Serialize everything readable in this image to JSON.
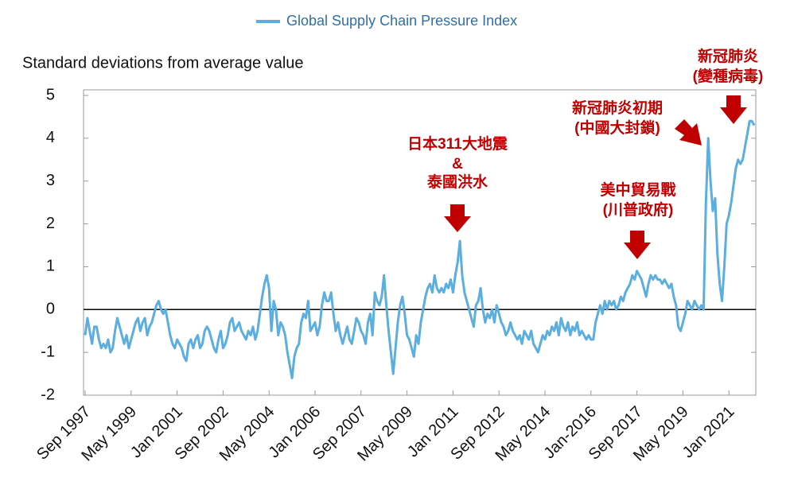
{
  "chart_data": {
    "type": "line",
    "legend": "Global Supply Chain Pressure Index",
    "y_label": "Standard deviations from average value",
    "annotations": [
      [
        "日本311大地震",
        "&",
        "泰國洪水"
      ],
      [
        "美中貿易戰",
        "(川普政府)"
      ],
      [
        "新冠肺炎初期",
        "(中國大封鎖)"
      ],
      [
        "新冠肺炎",
        "(變種病毒)"
      ]
    ],
    "ylim": [
      -2,
      5
    ],
    "yticks": [
      -2,
      -1,
      0,
      1,
      2,
      3,
      4,
      5
    ],
    "color": "#5aaee0",
    "categories": [
      "Sep 1997",
      null,
      null,
      null,
      null,
      null,
      null,
      null,
      null,
      null,
      null,
      null,
      null,
      null,
      null,
      null,
      null,
      null,
      null,
      null,
      "May 1999",
      null,
      null,
      null,
      null,
      null,
      null,
      null,
      null,
      null,
      null,
      null,
      null,
      null,
      null,
      null,
      null,
      null,
      null,
      null,
      "Jan 2001",
      null,
      null,
      null,
      null,
      null,
      null,
      null,
      null,
      null,
      null,
      null,
      null,
      null,
      null,
      null,
      null,
      null,
      null,
      null,
      "Sep 2002",
      null,
      null,
      null,
      null,
      null,
      null,
      null,
      null,
      null,
      null,
      null,
      null,
      null,
      null,
      null,
      null,
      null,
      null,
      null,
      "May 2004",
      null,
      null,
      null,
      null,
      null,
      null,
      null,
      null,
      null,
      null,
      null,
      null,
      null,
      null,
      null,
      null,
      null,
      null,
      null,
      "Jan 2006",
      null,
      null,
      null,
      null,
      null,
      null,
      null,
      null,
      null,
      null,
      null,
      null,
      null,
      null,
      null,
      null,
      null,
      null,
      null,
      "Sep 2007",
      null,
      null,
      null,
      null,
      null,
      null,
      null,
      null,
      null,
      null,
      null,
      null,
      null,
      null,
      null,
      null,
      null,
      null,
      null,
      "May 2009",
      null,
      null,
      null,
      null,
      null,
      null,
      null,
      null,
      null,
      null,
      null,
      null,
      null,
      null,
      null,
      null,
      null,
      null,
      null,
      "Jan 2011",
      null,
      null,
      null,
      null,
      null,
      null,
      null,
      null,
      null,
      null,
      null,
      null,
      null,
      null,
      null,
      null,
      null,
      null,
      null,
      "Sep 2012",
      null,
      null,
      null,
      null,
      null,
      null,
      null,
      null,
      null,
      null,
      null,
      null,
      null,
      null,
      null,
      null,
      null,
      null,
      null,
      "May 2014",
      null,
      null,
      null,
      null,
      null,
      null,
      null,
      null,
      null,
      null,
      null,
      null,
      null,
      null,
      null,
      null,
      null,
      null,
      null,
      "Jan-2016",
      null,
      null,
      null,
      null,
      null,
      null,
      null,
      null,
      null,
      null,
      null,
      null,
      null,
      null,
      null,
      null,
      null,
      null,
      null,
      "Sep 2017",
      null,
      null,
      null,
      null,
      null,
      null,
      null,
      null,
      null,
      null,
      null,
      null,
      null,
      null,
      null,
      null,
      null,
      null,
      null,
      "May 2019",
      null,
      null,
      null,
      null,
      null,
      null,
      null,
      null,
      null,
      null,
      null,
      null,
      null,
      null,
      null,
      null,
      null,
      null,
      null,
      "Jan 2021",
      null,
      null,
      null,
      null,
      null,
      null,
      null,
      null,
      null,
      null,
      null
    ],
    "values": [
      -0.6,
      -0.2,
      -0.5,
      -0.8,
      -0.4,
      -0.4,
      -0.7,
      -0.9,
      -0.8,
      -0.9,
      -0.7,
      -1.0,
      -0.9,
      -0.5,
      -0.2,
      -0.4,
      -0.6,
      -0.8,
      -0.6,
      -0.9,
      -0.7,
      -0.5,
      -0.3,
      -0.2,
      -0.5,
      -0.3,
      -0.2,
      -0.6,
      -0.4,
      -0.3,
      -0.1,
      0.1,
      0.2,
      0.0,
      -0.1,
      0.0,
      -0.3,
      -0.6,
      -0.8,
      -0.9,
      -0.7,
      -0.8,
      -0.9,
      -1.1,
      -1.2,
      -0.8,
      -0.7,
      -0.9,
      -0.7,
      -0.6,
      -0.9,
      -0.8,
      -0.5,
      -0.4,
      -0.5,
      -0.7,
      -0.9,
      -1.0,
      -0.7,
      -0.5,
      -0.9,
      -0.8,
      -0.6,
      -0.3,
      -0.2,
      -0.5,
      -0.4,
      -0.3,
      -0.5,
      -0.6,
      -0.7,
      -0.5,
      -0.6,
      -0.4,
      -0.7,
      -0.5,
      -0.1,
      0.3,
      0.6,
      0.8,
      0.5,
      -0.5,
      0.2,
      0.0,
      -0.6,
      -0.3,
      -0.4,
      -0.6,
      -1.0,
      -1.3,
      -1.6,
      -1.1,
      -0.9,
      -0.8,
      -0.3,
      -0.1,
      -0.2,
      0.2,
      -0.5,
      -0.4,
      -0.3,
      -0.6,
      -0.4,
      0.1,
      0.4,
      0.2,
      0.2,
      0.4,
      -0.1,
      -0.5,
      -0.3,
      -0.6,
      -0.8,
      -0.6,
      -0.4,
      -0.7,
      -0.8,
      -0.5,
      -0.2,
      -0.3,
      -0.5,
      -0.6,
      -0.8,
      -0.3,
      -0.1,
      -0.6,
      0.4,
      0.2,
      0.1,
      0.3,
      0.8,
      0.1,
      -0.5,
      -1.0,
      -1.5,
      -0.9,
      -0.3,
      0.1,
      0.3,
      -0.1,
      -0.6,
      -0.7,
      -0.9,
      -1.1,
      -0.6,
      -0.8,
      -0.3,
      0.0,
      0.3,
      0.5,
      0.6,
      0.4,
      0.8,
      0.5,
      0.4,
      0.5,
      0.4,
      0.6,
      0.5,
      0.7,
      0.4,
      0.8,
      1.1,
      1.6,
      0.8,
      0.4,
      0.2,
      0.0,
      -0.2,
      -0.4,
      0.1,
      0.2,
      0.5,
      0.0,
      -0.3,
      -0.1,
      -0.2,
      0.0,
      -0.3,
      0.1,
      -0.1,
      -0.3,
      -0.4,
      -0.6,
      -0.5,
      -0.3,
      -0.5,
      -0.6,
      -0.7,
      -0.6,
      -0.8,
      -0.5,
      -0.6,
      -0.7,
      -0.5,
      -0.8,
      -0.9,
      -1.0,
      -0.8,
      -0.6,
      -0.7,
      -0.5,
      -0.6,
      -0.4,
      -0.5,
      -0.3,
      -0.6,
      -0.2,
      -0.4,
      -0.5,
      -0.3,
      -0.6,
      -0.4,
      -0.5,
      -0.3,
      -0.6,
      -0.5,
      -0.6,
      -0.7,
      -0.6,
      -0.7,
      -0.7,
      -0.3,
      -0.1,
      0.1,
      -0.1,
      0.2,
      0.0,
      0.2,
      0.1,
      0.2,
      0.0,
      0.1,
      0.3,
      0.2,
      0.4,
      0.5,
      0.6,
      0.8,
      0.7,
      0.9,
      0.8,
      0.7,
      0.5,
      0.3,
      0.6,
      0.8,
      0.7,
      0.8,
      0.7,
      0.7,
      0.6,
      0.7,
      0.6,
      0.5,
      0.6,
      0.3,
      0.1,
      -0.4,
      -0.5,
      -0.3,
      -0.1,
      0.2,
      0.1,
      0.0,
      0.2,
      0.1,
      0.0,
      0.1,
      0.0,
      2.5,
      4.0,
      3.0,
      2.3,
      2.6,
      1.3,
      0.6,
      0.2,
      1.0,
      2.0,
      2.2,
      2.5,
      2.9,
      3.3,
      3.5,
      3.4,
      3.5,
      3.8,
      4.1,
      4.4,
      4.4,
      4.3
    ]
  }
}
